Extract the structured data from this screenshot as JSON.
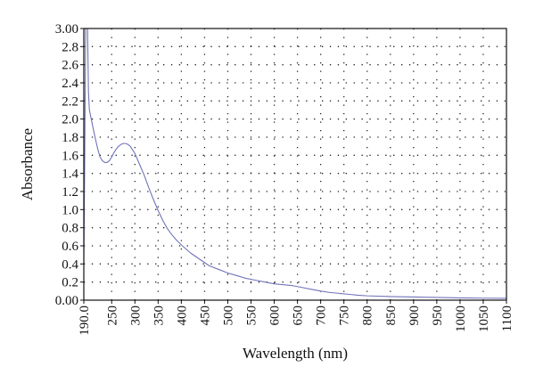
{
  "chart_data": {
    "type": "line",
    "title": "",
    "xlabel": "Wavelength (nm)",
    "ylabel": "Absorbance",
    "xlim": [
      190,
      1100
    ],
    "ylim": [
      0,
      3
    ],
    "x_ticks": [
      "190.0",
      "250",
      "300",
      "350",
      "400",
      "450",
      "500",
      "550",
      "600",
      "650",
      "700",
      "750",
      "800",
      "850",
      "900",
      "950",
      "1000",
      "1050",
      "1100"
    ],
    "y_ticks": [
      "0.00",
      "0.2",
      "0.4",
      "0.6",
      "0.8",
      "1.0",
      "1.2",
      "1.4",
      "1.6",
      "1.8",
      "2.0",
      "2.2",
      "2.4",
      "2.6",
      "2.8",
      "3.00"
    ],
    "grid": "dotted",
    "legend": "none",
    "series": [
      {
        "color": "#6f74b8",
        "x": [
          190,
          192,
          194,
          196,
          198,
          200,
          202,
          204,
          206,
          210,
          215,
          220,
          225,
          230,
          235,
          240,
          245,
          250,
          255,
          260,
          265,
          270,
          275,
          280,
          285,
          290,
          295,
          300,
          310,
          320,
          330,
          340,
          350,
          360,
          370,
          380,
          390,
          400,
          420,
          440,
          460,
          480,
          500,
          520,
          540,
          560,
          580,
          600,
          620,
          640,
          660,
          680,
          700,
          720,
          740,
          760,
          780,
          800,
          850,
          900,
          950,
          1000,
          1050,
          1100
        ],
        "y": [
          0.4,
          1.6,
          3.0,
          3.0,
          3.0,
          2.3,
          2.1,
          2.05,
          2.0,
          1.9,
          1.78,
          1.67,
          1.58,
          1.54,
          1.52,
          1.52,
          1.54,
          1.58,
          1.63,
          1.67,
          1.7,
          1.72,
          1.73,
          1.73,
          1.72,
          1.7,
          1.66,
          1.62,
          1.5,
          1.38,
          1.24,
          1.11,
          0.99,
          0.88,
          0.79,
          0.72,
          0.66,
          0.61,
          0.52,
          0.45,
          0.38,
          0.34,
          0.3,
          0.27,
          0.24,
          0.22,
          0.2,
          0.18,
          0.17,
          0.16,
          0.14,
          0.12,
          0.1,
          0.085,
          0.075,
          0.065,
          0.055,
          0.048,
          0.04,
          0.035,
          0.03,
          0.025,
          0.022,
          0.02
        ]
      }
    ]
  }
}
